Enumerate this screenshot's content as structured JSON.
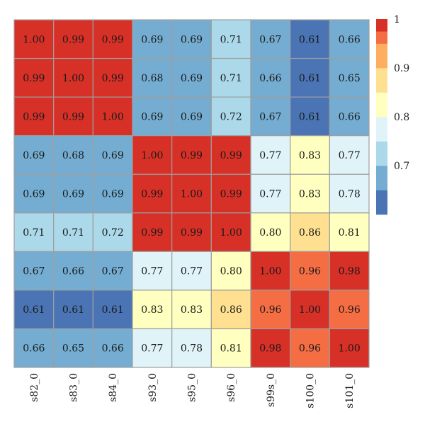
{
  "chart_data": {
    "type": "heatmap",
    "title": "",
    "xlabel": "",
    "ylabel": "",
    "row_labels": [
      "",
      "",
      "",
      "",
      "",
      "",
      "",
      "",
      ""
    ],
    "col_labels": [
      "s82_0",
      "s83_0",
      "s84_0",
      "s93_0",
      "s95_0",
      "s96_0",
      "s99s_0",
      "s100_0",
      "s101_0"
    ],
    "values": [
      [
        1.0,
        0.99,
        0.99,
        0.69,
        0.69,
        0.71,
        0.67,
        0.61,
        0.66
      ],
      [
        0.99,
        1.0,
        0.99,
        0.68,
        0.69,
        0.71,
        0.66,
        0.61,
        0.65
      ],
      [
        0.99,
        0.99,
        1.0,
        0.69,
        0.69,
        0.72,
        0.67,
        0.61,
        0.66
      ],
      [
        0.69,
        0.68,
        0.69,
        1.0,
        0.99,
        0.99,
        0.77,
        0.83,
        0.77
      ],
      [
        0.69,
        0.69,
        0.69,
        0.99,
        1.0,
        0.99,
        0.77,
        0.83,
        0.78
      ],
      [
        0.71,
        0.71,
        0.72,
        0.99,
        0.99,
        1.0,
        0.8,
        0.86,
        0.81
      ],
      [
        0.67,
        0.66,
        0.67,
        0.77,
        0.77,
        0.8,
        1.0,
        0.96,
        0.98
      ],
      [
        0.61,
        0.61,
        0.61,
        0.83,
        0.83,
        0.86,
        0.96,
        1.0,
        0.96
      ],
      [
        0.66,
        0.65,
        0.66,
        0.77,
        0.78,
        0.81,
        0.98,
        0.96,
        1.0
      ]
    ],
    "cell_labels": [
      [
        "1.00",
        "0.99",
        "0.99",
        "0.69",
        "0.69",
        "0.71",
        "0.67",
        "0.61",
        "0.66"
      ],
      [
        "0.99",
        "1.00",
        "0.99",
        "0.68",
        "0.69",
        "0.71",
        "0.66",
        "0.61",
        "0.65"
      ],
      [
        "0.99",
        "0.99",
        "1.00",
        "0.69",
        "0.69",
        "0.72",
        "0.67",
        "0.61",
        "0.66"
      ],
      [
        "0.69",
        "0.68",
        "0.69",
        "1.00",
        "0.99",
        "0.99",
        "0.77",
        "0.83",
        "0.77"
      ],
      [
        "0.69",
        "0.69",
        "0.69",
        "0.99",
        "1.00",
        "0.99",
        "0.77",
        "0.83",
        "0.78"
      ],
      [
        "0.71",
        "0.71",
        "0.72",
        "0.99",
        "0.99",
        "1.00",
        "0.80",
        "0.86",
        "0.81"
      ],
      [
        "0.67",
        "0.66",
        "0.67",
        "0.77",
        "0.77",
        "0.80",
        "1.00",
        "0.96",
        "0.98"
      ],
      [
        "0.61",
        "0.61",
        "0.61",
        "0.83",
        "0.83",
        "0.86",
        "0.96",
        "1.00",
        "0.96"
      ],
      [
        "0.66",
        "0.65",
        "0.66",
        "0.77",
        "0.78",
        "0.81",
        "0.98",
        "0.96",
        "1.00"
      ]
    ],
    "color_scale": {
      "min": 0.6,
      "max": 1.0,
      "bins": [
        {
          "from": 0.6,
          "to": 0.65,
          "color": "#4a74b4"
        },
        {
          "from": 0.65,
          "to": 0.7,
          "color": "#74add1"
        },
        {
          "from": 0.7,
          "to": 0.75,
          "color": "#abd9e9"
        },
        {
          "from": 0.75,
          "to": 0.8,
          "color": "#e0f3f8"
        },
        {
          "from": 0.8,
          "to": 0.85,
          "color": "#ffffbf"
        },
        {
          "from": 0.85,
          "to": 0.9,
          "color": "#fee090"
        },
        {
          "from": 0.9,
          "to": 0.95,
          "color": "#fdae61"
        },
        {
          "from": 0.95,
          "to": 0.975,
          "color": "#f46d43"
        },
        {
          "from": 0.975,
          "to": 1.0,
          "color": "#d73027"
        }
      ],
      "legend_ticks": [
        {
          "value": 1.0,
          "label": "1"
        },
        {
          "value": 0.9,
          "label": "0.9"
        },
        {
          "value": 0.8,
          "label": "0.8"
        },
        {
          "value": 0.7,
          "label": "0.7"
        }
      ]
    },
    "colors": {
      "grid": "#9e9e9e",
      "text": "#1a1a1a",
      "low": "#4a74b4",
      "high": "#d73027"
    },
    "legend_placement": "right"
  }
}
